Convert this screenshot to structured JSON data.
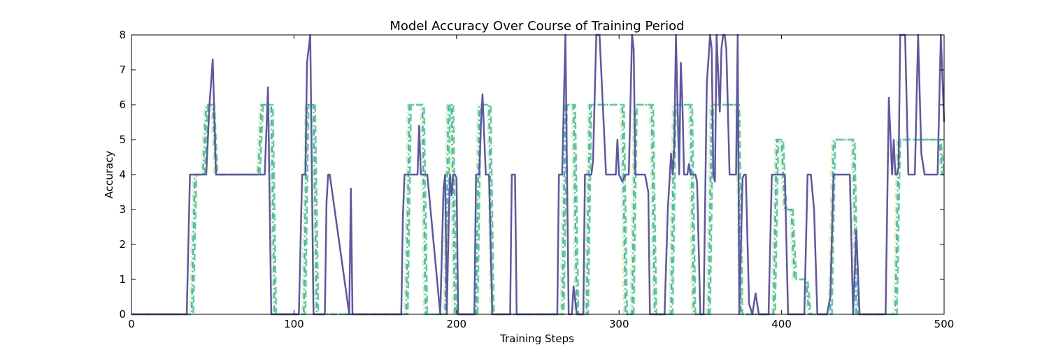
{
  "chart_data": {
    "type": "line",
    "title": "Model Accuracy Over Course of Training Period",
    "xlabel": "Training Steps",
    "ylabel": "Accuracy",
    "xlim": [
      0,
      500
    ],
    "ylim": [
      0,
      8
    ],
    "xticks": [
      0,
      100,
      200,
      300,
      400,
      500
    ],
    "yticks": [
      0,
      1,
      2,
      3,
      4,
      5,
      6,
      7,
      8
    ],
    "grid": false,
    "legend": "none",
    "series": [
      {
        "color": "#d9f0a3",
        "style": "dashdot",
        "x": [
          0,
          36,
          38,
          43,
          45,
          49,
          51,
          77,
          79,
          85,
          87,
          105,
          107,
          111,
          113,
          168,
          170,
          178,
          180,
          192,
          194,
          196,
          198,
          211,
          213,
          219,
          221,
          264,
          266,
          271,
          273,
          279,
          281,
          301,
          303,
          307,
          309,
          319,
          321,
          331,
          333,
          343,
          345,
          354,
          356,
          372,
          374,
          394,
          396,
          399,
          401,
          405,
          407,
          414,
          416,
          429,
          431,
          443,
          445,
          469,
          471,
          496,
          498,
          500
        ],
        "y": [
          0,
          0,
          4,
          4,
          6,
          6,
          4,
          4,
          6,
          6,
          0,
          0,
          6,
          6,
          0,
          0,
          6,
          6,
          0,
          0,
          6,
          6,
          0,
          0,
          6,
          6,
          0,
          0,
          6,
          6,
          0,
          0,
          6,
          6,
          0,
          0,
          6,
          6,
          0,
          0,
          6,
          6,
          0,
          0,
          6,
          6,
          0,
          0,
          5,
          5,
          3,
          3,
          1,
          1,
          0,
          0,
          5,
          5,
          0,
          0,
          5,
          5,
          4,
          4
        ]
      },
      {
        "color": "#41b6c4",
        "style": "dashdot",
        "x": [
          0,
          37,
          39,
          44,
          46,
          50,
          52,
          78,
          80,
          86,
          88,
          106,
          108,
          112,
          114,
          169,
          171,
          179,
          181,
          193,
          195,
          197,
          199,
          212,
          214,
          220,
          222,
          265,
          267,
          272,
          274,
          280,
          282,
          302,
          304,
          308,
          310,
          320,
          322,
          332,
          334,
          344,
          346,
          355,
          357,
          373,
          375,
          395,
          397,
          400,
          402,
          406,
          408,
          415,
          417,
          430,
          432,
          444,
          446,
          470,
          472,
          497,
          499,
          500
        ],
        "y": [
          0,
          0,
          4,
          4,
          6,
          6,
          4,
          4,
          6,
          6,
          0,
          0,
          6,
          6,
          0,
          0,
          6,
          6,
          0,
          0,
          6,
          6,
          0,
          0,
          6,
          6,
          0,
          0,
          6,
          6,
          0,
          0,
          6,
          6,
          0,
          0,
          6,
          6,
          0,
          0,
          6,
          6,
          0,
          0,
          6,
          6,
          0,
          0,
          5,
          5,
          3,
          3,
          1,
          1,
          0,
          0,
          5,
          5,
          0,
          0,
          5,
          5,
          4,
          4
        ]
      },
      {
        "color": "#5fd28a",
        "style": "dashed",
        "x": [
          0,
          38,
          40,
          45,
          47,
          51,
          53,
          79,
          81,
          87,
          89,
          107,
          109,
          113,
          115,
          170,
          172,
          180,
          182,
          194,
          196,
          198,
          200,
          213,
          215,
          221,
          223,
          266,
          268,
          273,
          275,
          281,
          283,
          303,
          305,
          309,
          311,
          321,
          323,
          333,
          335,
          345,
          347,
          356,
          358,
          374,
          376,
          396,
          398,
          401,
          403,
          407,
          409,
          416,
          418,
          431,
          433,
          445,
          447,
          471,
          473,
          498,
          500
        ],
        "y": [
          0,
          0,
          4,
          4,
          6,
          6,
          4,
          4,
          6,
          6,
          0,
          0,
          6,
          6,
          0,
          0,
          6,
          6,
          0,
          0,
          6,
          6,
          0,
          0,
          6,
          6,
          0,
          0,
          6,
          6,
          0,
          0,
          6,
          6,
          0,
          0,
          6,
          6,
          0,
          0,
          6,
          6,
          0,
          0,
          6,
          6,
          0,
          0,
          5,
          5,
          3,
          3,
          1,
          1,
          0,
          0,
          5,
          5,
          0,
          0,
          5,
          5,
          4
        ]
      },
      {
        "color": "#5e56a8",
        "style": "solid",
        "x": [
          0,
          34,
          36,
          46,
          48,
          50,
          52,
          80,
          82,
          84,
          86,
          103,
          105,
          107,
          108,
          110,
          112,
          119,
          120,
          121,
          122,
          134,
          135,
          136,
          137,
          166,
          167,
          168,
          170,
          174,
          176,
          177,
          178,
          180,
          182,
          190,
          192,
          193,
          194,
          195,
          196,
          197,
          198,
          199,
          200,
          201,
          202,
          211,
          212,
          214,
          215,
          216,
          218,
          220,
          222,
          233,
          234,
          236,
          237,
          262,
          263,
          265,
          266,
          267,
          269,
          271,
          272,
          274,
          276,
          278,
          279,
          281,
          283,
          284,
          286,
          288,
          290,
          292,
          296,
          298,
          299,
          300,
          302,
          304,
          306,
          307,
          308,
          309,
          310,
          312,
          314,
          316,
          318,
          319,
          320,
          322,
          324,
          326,
          328,
          330,
          332,
          333,
          334,
          335,
          336,
          337,
          338,
          339,
          340,
          342,
          343,
          344,
          345,
          346,
          347,
          348,
          350,
          352,
          354,
          356,
          357,
          358,
          359,
          360,
          362,
          363,
          364,
          365,
          366,
          368,
          370,
          372,
          373,
          374,
          376,
          377,
          378,
          380,
          382,
          384,
          386,
          388,
          390,
          392,
          394,
          396,
          398,
          400,
          402,
          404,
          406,
          408,
          410,
          412,
          414,
          416,
          418,
          420,
          422,
          424,
          426,
          428,
          430,
          432,
          434,
          436,
          438,
          440,
          442,
          444,
          446,
          448,
          450,
          452,
          454,
          456,
          458,
          460,
          462,
          464,
          466,
          468,
          469,
          470,
          471,
          472,
          473,
          474,
          476,
          478,
          480,
          482,
          484,
          486,
          488,
          490,
          492,
          494,
          496,
          498,
          500
        ],
        "y": [
          0,
          0,
          4,
          4,
          6,
          7.3,
          4,
          4,
          4,
          6.5,
          0,
          0,
          4,
          4,
          7.2,
          8,
          0,
          0,
          3.2,
          4,
          4,
          0,
          3.6,
          0,
          0,
          0,
          2.8,
          4,
          4,
          4,
          4,
          5.4,
          4,
          4,
          4,
          0,
          3.6,
          4,
          0,
          2.2,
          4,
          3.4,
          4,
          4,
          3.9,
          0,
          0,
          0,
          4,
          4,
          5.4,
          6.3,
          4,
          4,
          0,
          0,
          4,
          4,
          0,
          0,
          4,
          4,
          6,
          8,
          0,
          0,
          0.8,
          0,
          0,
          0,
          4,
          4,
          4,
          4.4,
          8,
          8,
          6,
          4,
          4,
          4,
          5,
          4,
          3.8,
          4,
          4,
          6,
          8,
          7.6,
          4,
          4,
          4,
          4,
          3.5,
          0,
          0,
          0,
          0,
          0,
          0,
          3,
          4.6,
          4,
          4.8,
          8,
          6,
          4,
          7.2,
          6,
          4,
          4,
          4.3,
          4,
          4,
          4,
          4,
          3.8,
          0,
          0,
          6.6,
          8,
          7.6,
          4,
          3.8,
          8,
          5.8,
          7.6,
          8,
          8,
          7.6,
          4,
          4,
          4,
          8,
          0,
          3.9,
          4,
          4,
          0.3,
          0,
          0.6,
          0,
          0,
          0,
          0,
          4,
          4,
          4,
          4,
          4,
          0,
          0,
          0,
          0,
          0,
          0,
          4,
          4,
          3,
          0,
          0,
          0,
          0,
          0.5,
          4,
          4,
          4,
          4,
          4,
          4,
          0,
          2.4,
          0,
          0,
          0,
          0,
          0,
          0,
          0,
          0,
          0,
          6.2,
          4,
          5,
          4,
          4,
          4.2,
          8,
          8,
          8,
          4,
          4,
          4,
          8,
          4.6,
          4,
          4,
          4,
          4,
          4,
          8,
          5.5
        ]
      }
    ]
  }
}
